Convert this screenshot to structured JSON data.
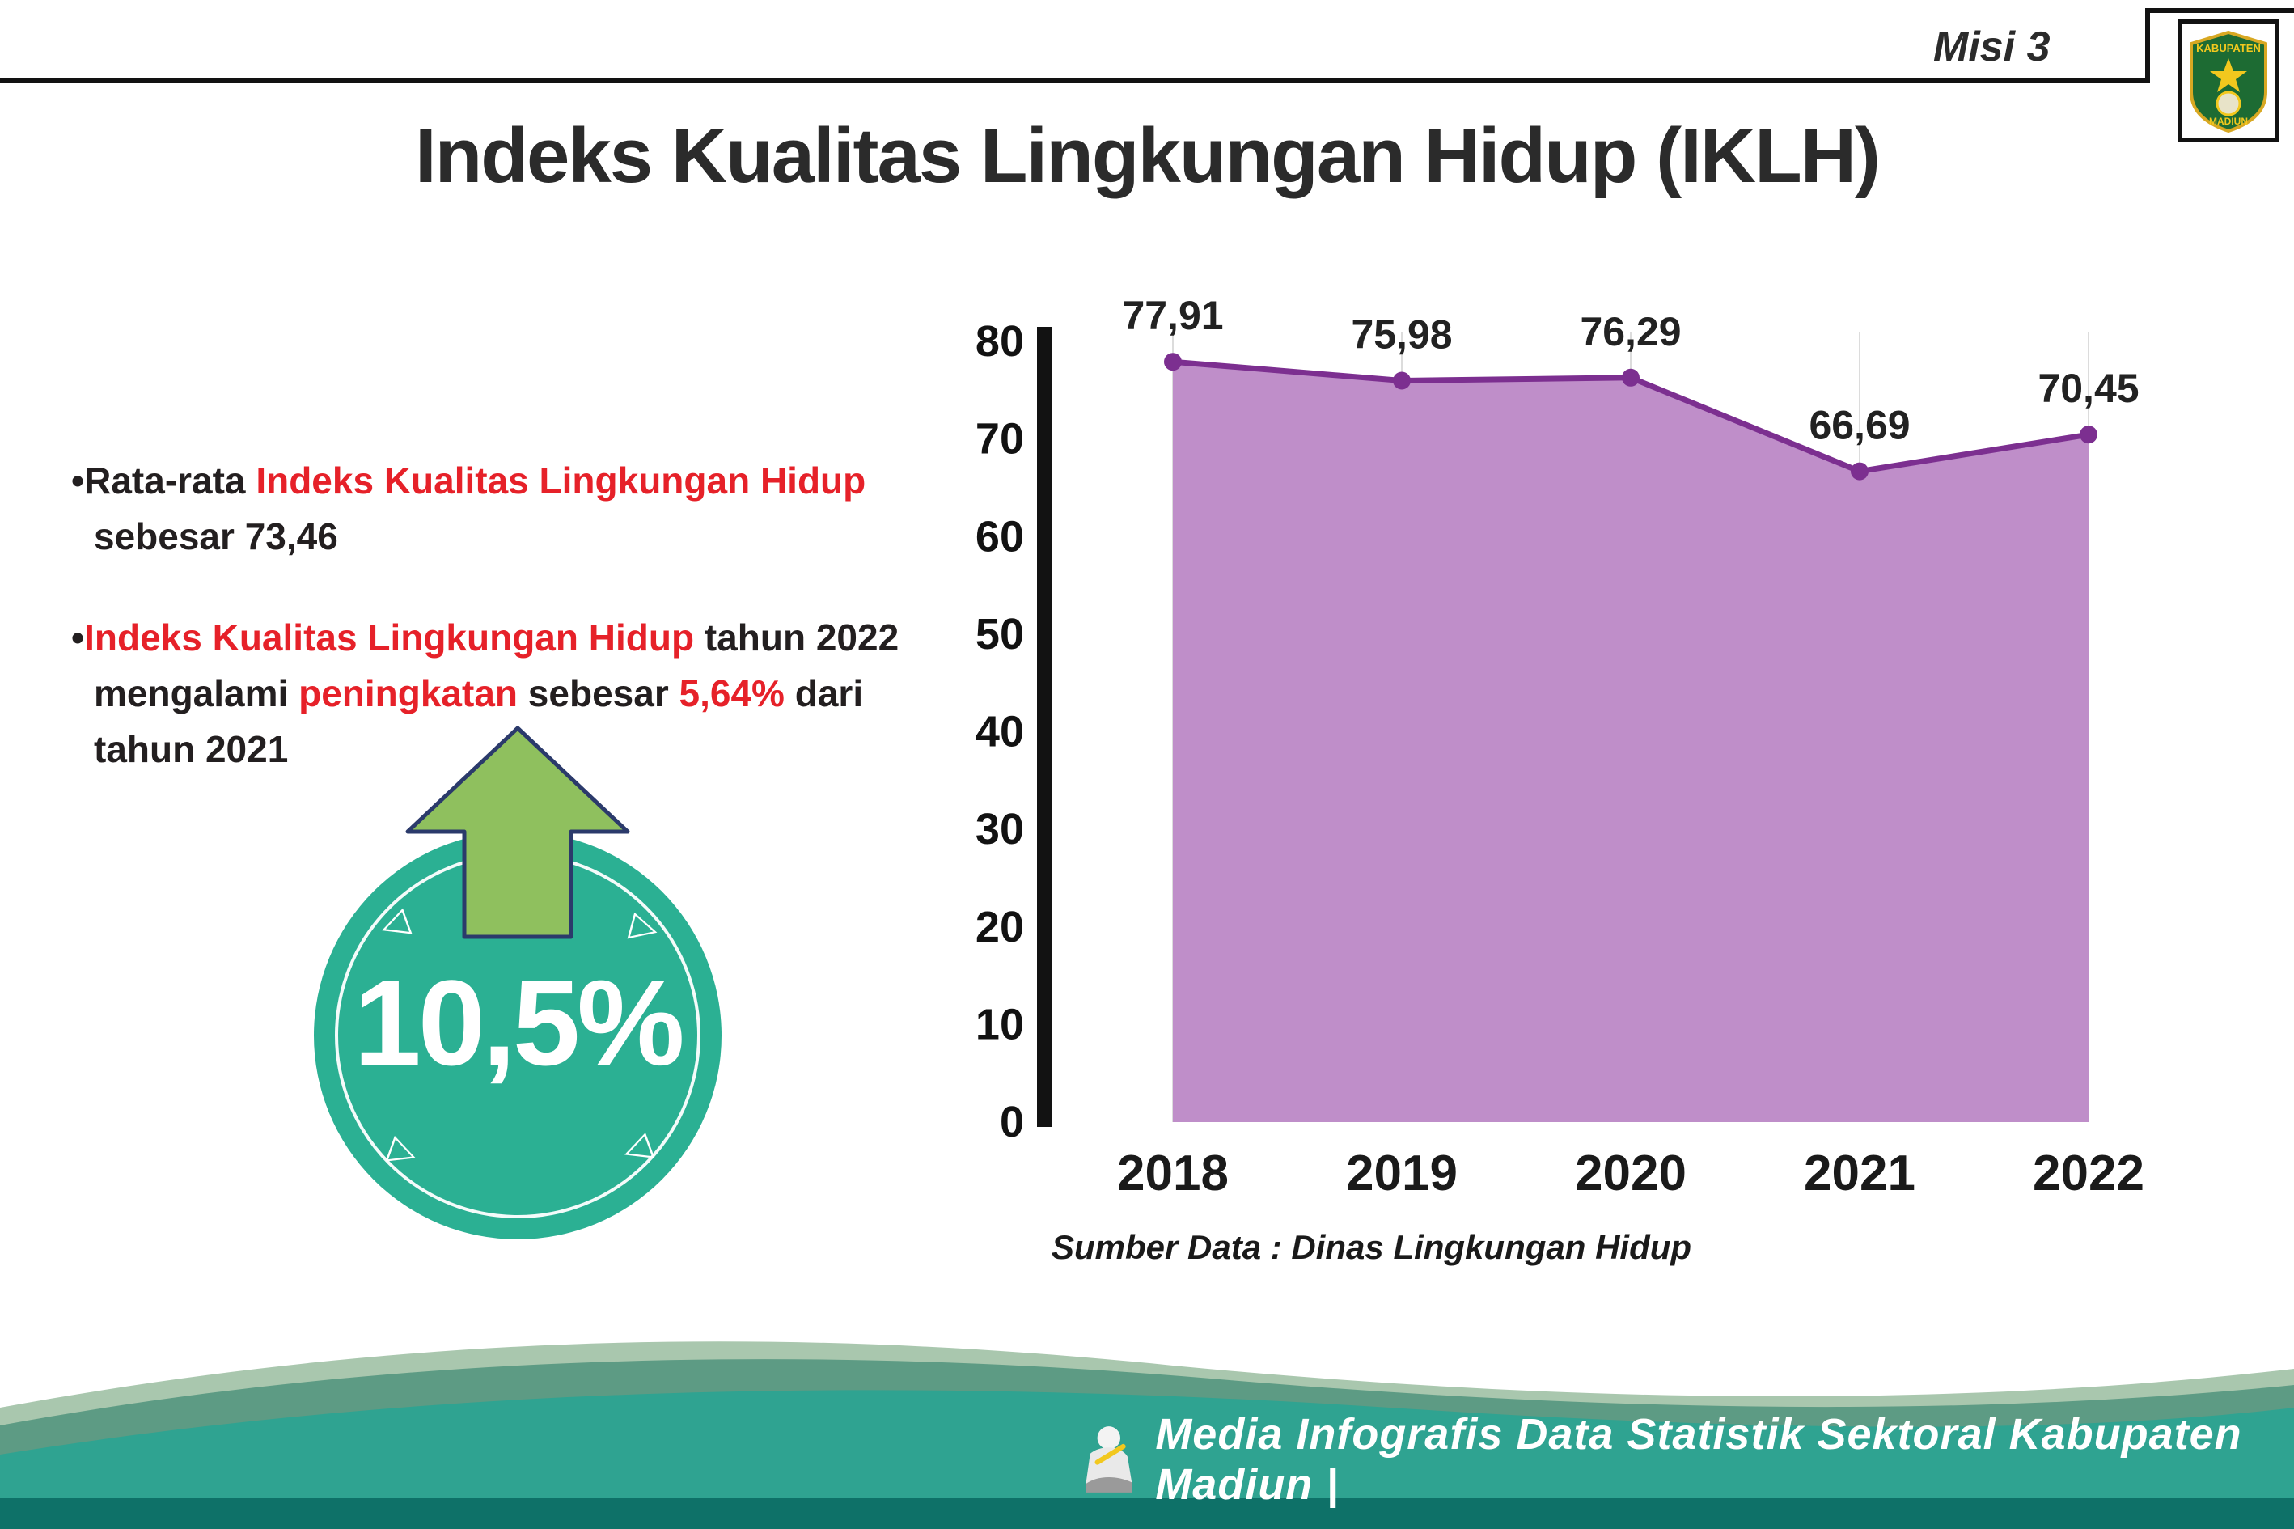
{
  "header": {
    "misi_label": "Misi 3",
    "logo": {
      "top_text": "KABUPATEN",
      "bottom_text": "MADIUN"
    }
  },
  "page": {
    "title": "Indeks Kualitas Lingkungan Hidup (IKLH)"
  },
  "bullets": {
    "bullet_char": "•",
    "b1": {
      "s1": "Rata-rata ",
      "s2": "Indeks Kualitas Lingkungan Hidup",
      "s3": "sebesar 73,46"
    },
    "b2": {
      "s1": "Indeks Kualitas Lingkungan Hidup",
      "s2": " tahun 2022",
      "s3": "mengalami ",
      "s4": "peningkatan",
      "s5": " sebesar ",
      "s6": "5,64%",
      "s7": " dari",
      "s8": "tahun 2021"
    }
  },
  "badge": {
    "value": "10,5%",
    "arrow_icon": "up-arrow",
    "circle_color": "#2bb093",
    "arrow_color": "#8fc05e"
  },
  "chart_data": {
    "type": "area",
    "title": "",
    "categories": [
      "2018",
      "2019",
      "2020",
      "2021",
      "2022"
    ],
    "values": [
      77.91,
      75.98,
      76.29,
      66.69,
      70.45
    ],
    "value_labels": [
      "77,91",
      "75,98",
      "76,29",
      "66,69",
      "70,45"
    ],
    "ylim": [
      0,
      80
    ],
    "yticks": [
      0,
      10,
      20,
      30,
      40,
      50,
      60,
      70,
      80
    ],
    "grid": "vertical",
    "legend": "none",
    "source": "Sumber Data : Dinas Lingkungan Hidup",
    "colors": {
      "fill": "#bf8ec9",
      "line": "#7c2f90",
      "point": "#7c2f90",
      "axis": "#121212",
      "grid": "#dcdcdc"
    }
  },
  "footer": {
    "text": "Media Infografis Data Statistik Sektoral Kabupaten Madiun |"
  }
}
